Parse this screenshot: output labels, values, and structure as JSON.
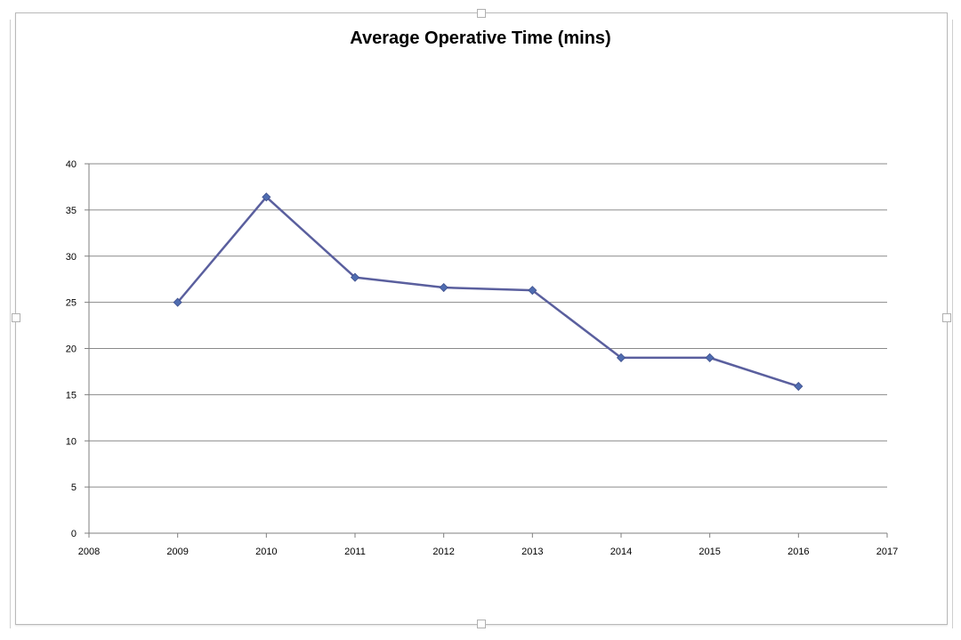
{
  "chart_data": {
    "type": "line",
    "title": "Average Operative Time (mins)",
    "xlabel": "",
    "ylabel": "",
    "xlim": [
      2008,
      2017
    ],
    "ylim": [
      0,
      40
    ],
    "x_ticks": [
      2008,
      2009,
      2010,
      2011,
      2012,
      2013,
      2014,
      2015,
      2016,
      2017
    ],
    "y_ticks": [
      0,
      5,
      10,
      15,
      20,
      25,
      30,
      35,
      40
    ],
    "grid": "horizontal",
    "legend": "none",
    "series": [
      {
        "color": "#5a5f9e",
        "marker": "diamond",
        "x": [
          2009,
          2010,
          2011,
          2012,
          2013,
          2014,
          2015,
          2016
        ],
        "y": [
          25,
          36.4,
          27.7,
          26.6,
          26.3,
          19.0,
          19.0,
          15.9
        ]
      }
    ]
  }
}
